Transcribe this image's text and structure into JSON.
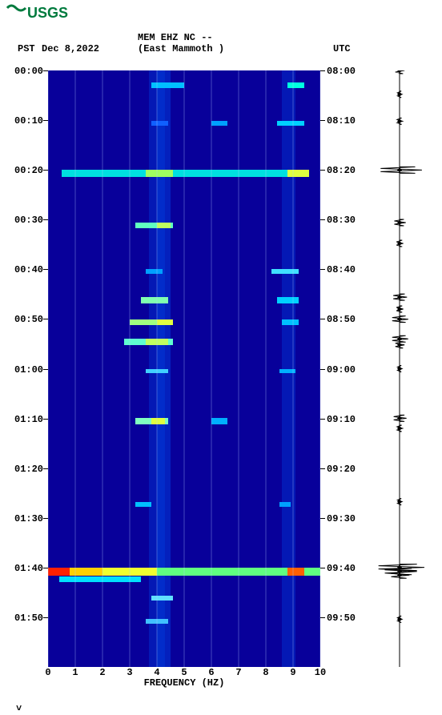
{
  "logo_text": "USGS",
  "logo_color": "#007a3d",
  "header": {
    "pst": "PST",
    "date": "Dec 8,2022",
    "title1": "MEM EHZ NC --",
    "title2": "(East Mammoth )",
    "utc": "UTC"
  },
  "axis": {
    "xlabel": "FREQUENCY (HZ)",
    "xticks": [
      0,
      1,
      2,
      3,
      4,
      5,
      6,
      7,
      8,
      9,
      10
    ],
    "ylabels_left": [
      "00:00",
      "00:10",
      "00:20",
      "00:30",
      "00:40",
      "00:50",
      "01:00",
      "01:10",
      "01:20",
      "01:30",
      "01:40",
      "01:50"
    ],
    "ylabels_right": [
      "08:00",
      "08:10",
      "08:20",
      "08:30",
      "08:40",
      "08:50",
      "09:00",
      "09:10",
      "09:20",
      "09:30",
      "09:40",
      "09:50"
    ],
    "time_positions": [
      0.0,
      0.0833,
      0.1667,
      0.25,
      0.3333,
      0.4167,
      0.5,
      0.5833,
      0.6667,
      0.75,
      0.8333,
      0.9167
    ]
  },
  "spectrogram": {
    "background_color": "#08009a",
    "gridline_color": "#b0d0ff",
    "time_range_min": 120,
    "freq_range_hz": 10,
    "events": [
      {
        "t": 0.02,
        "h": 0.01,
        "cells": [
          {
            "f": 0.38,
            "w": 0.12,
            "c": "#00c0ff"
          },
          {
            "f": 0.88,
            "w": 0.06,
            "c": "#00ffe0"
          }
        ]
      },
      {
        "t": 0.085,
        "h": 0.008,
        "cells": [
          {
            "f": 0.38,
            "w": 0.06,
            "c": "#1060ff"
          },
          {
            "f": 0.6,
            "w": 0.06,
            "c": "#00a0ff"
          },
          {
            "f": 0.84,
            "w": 0.1,
            "c": "#00d0ff"
          }
        ]
      },
      {
        "t": 0.167,
        "h": 0.012,
        "cells": [
          {
            "f": 0.05,
            "w": 0.9,
            "c": "#00e0e0"
          },
          {
            "f": 0.36,
            "w": 0.1,
            "c": "#a0ff60"
          },
          {
            "f": 0.88,
            "w": 0.08,
            "c": "#e0ff40"
          }
        ]
      },
      {
        "t": 0.255,
        "h": 0.01,
        "cells": [
          {
            "f": 0.32,
            "w": 0.14,
            "c": "#60ffc0"
          },
          {
            "f": 0.4,
            "w": 0.05,
            "c": "#c0ff60"
          }
        ]
      },
      {
        "t": 0.333,
        "h": 0.008,
        "cells": [
          {
            "f": 0.82,
            "w": 0.1,
            "c": "#40e0ff"
          },
          {
            "f": 0.36,
            "w": 0.06,
            "c": "#00a0ff"
          }
        ]
      },
      {
        "t": 0.38,
        "h": 0.01,
        "cells": [
          {
            "f": 0.34,
            "w": 0.1,
            "c": "#80ffb0"
          },
          {
            "f": 0.84,
            "w": 0.08,
            "c": "#00d0ff"
          }
        ]
      },
      {
        "t": 0.417,
        "h": 0.01,
        "cells": [
          {
            "f": 0.3,
            "w": 0.14,
            "c": "#a0ff80"
          },
          {
            "f": 0.4,
            "w": 0.06,
            "c": "#e0ff40"
          },
          {
            "f": 0.86,
            "w": 0.06,
            "c": "#00c0ff"
          }
        ]
      },
      {
        "t": 0.45,
        "h": 0.01,
        "cells": [
          {
            "f": 0.28,
            "w": 0.18,
            "c": "#60ffd0"
          },
          {
            "f": 0.36,
            "w": 0.08,
            "c": "#c0ff60"
          }
        ]
      },
      {
        "t": 0.5,
        "h": 0.008,
        "cells": [
          {
            "f": 0.36,
            "w": 0.08,
            "c": "#40d0ff"
          },
          {
            "f": 0.85,
            "w": 0.06,
            "c": "#00b0ff"
          }
        ]
      },
      {
        "t": 0.583,
        "h": 0.01,
        "cells": [
          {
            "f": 0.32,
            "w": 0.12,
            "c": "#80ffc0"
          },
          {
            "f": 0.38,
            "w": 0.05,
            "c": "#e0ff40"
          },
          {
            "f": 0.6,
            "w": 0.06,
            "c": "#00b0ff"
          }
        ]
      },
      {
        "t": 0.723,
        "h": 0.008,
        "cells": [
          {
            "f": 0.32,
            "w": 0.06,
            "c": "#00c0ff"
          },
          {
            "f": 0.85,
            "w": 0.04,
            "c": "#00a0ff"
          }
        ]
      },
      {
        "t": 0.833,
        "h": 0.014,
        "cells": [
          {
            "f": 0.0,
            "w": 1.0,
            "c": "#60ff80"
          },
          {
            "f": 0.0,
            "w": 0.1,
            "c": "#ff2000"
          },
          {
            "f": 0.08,
            "w": 0.14,
            "c": "#ffd000"
          },
          {
            "f": 0.2,
            "w": 0.2,
            "c": "#f0ff30"
          },
          {
            "f": 0.88,
            "w": 0.06,
            "c": "#ff6000"
          }
        ]
      },
      {
        "t": 0.848,
        "h": 0.01,
        "cells": [
          {
            "f": 0.04,
            "w": 0.3,
            "c": "#00e0ff"
          }
        ]
      },
      {
        "t": 0.88,
        "h": 0.008,
        "cells": [
          {
            "f": 0.38,
            "w": 0.08,
            "c": "#60e0ff"
          }
        ]
      },
      {
        "t": 0.92,
        "h": 0.008,
        "cells": [
          {
            "f": 0.36,
            "w": 0.08,
            "c": "#40c0ff"
          }
        ]
      }
    ],
    "noise_columns": [
      {
        "f": 0.37,
        "w": 0.06,
        "c": "#0030d0"
      },
      {
        "f": 0.4,
        "w": 0.05,
        "c": "#0040e0"
      },
      {
        "f": 0.86,
        "w": 0.05,
        "c": "#0030d0"
      }
    ]
  },
  "seismogram": {
    "color": "#000000",
    "baseline_x": 0.5,
    "events": [
      {
        "t": 0.0,
        "amp": 0.2
      },
      {
        "t": 0.04,
        "amp": 0.1
      },
      {
        "t": 0.085,
        "amp": 0.12
      },
      {
        "t": 0.167,
        "amp": 0.9
      },
      {
        "t": 0.255,
        "amp": 0.25
      },
      {
        "t": 0.29,
        "amp": 0.15
      },
      {
        "t": 0.38,
        "amp": 0.3
      },
      {
        "t": 0.4,
        "amp": 0.15
      },
      {
        "t": 0.417,
        "amp": 0.35
      },
      {
        "t": 0.45,
        "amp": 0.35
      },
      {
        "t": 0.46,
        "amp": 0.2
      },
      {
        "t": 0.5,
        "amp": 0.1
      },
      {
        "t": 0.583,
        "amp": 0.28
      },
      {
        "t": 0.6,
        "amp": 0.12
      },
      {
        "t": 0.723,
        "amp": 0.1
      },
      {
        "t": 0.833,
        "amp": 1.0
      },
      {
        "t": 0.84,
        "amp": 0.7
      },
      {
        "t": 0.846,
        "amp": 0.4
      },
      {
        "t": 0.92,
        "amp": 0.1
      }
    ]
  }
}
